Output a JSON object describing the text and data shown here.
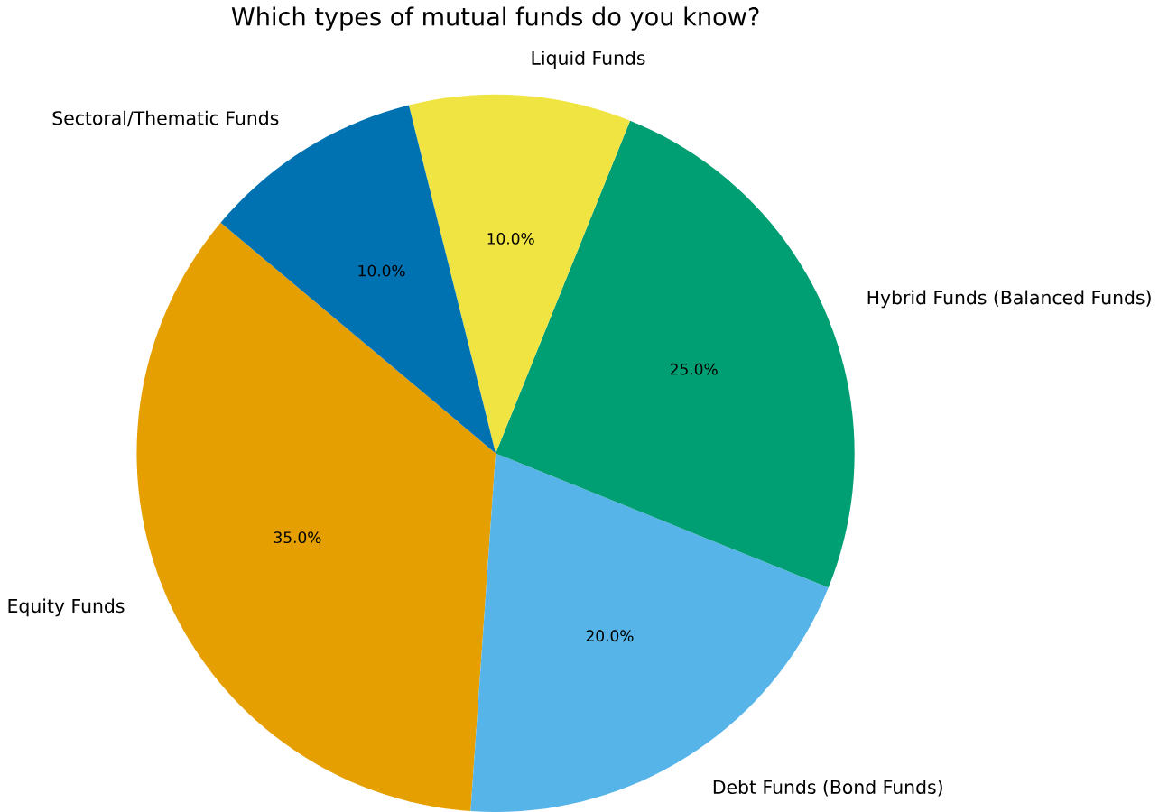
{
  "chart_data": {
    "type": "pie",
    "title": "Which types of mutual funds do you know?",
    "categories": [
      "Equity Funds",
      "Debt Funds (Bond Funds)",
      "Hybrid Funds (Balanced Funds)",
      "Liquid Funds",
      "Sectoral/Thematic Funds"
    ],
    "values": [
      35,
      20,
      25,
      10,
      10
    ],
    "colors": [
      "#e69f00",
      "#56b4e9",
      "#009e73",
      "#f0e442",
      "#0072b2"
    ],
    "value_labels": [
      "35.0%",
      "20.0%",
      "25.0%",
      "10.0%",
      "10.0%"
    ]
  }
}
